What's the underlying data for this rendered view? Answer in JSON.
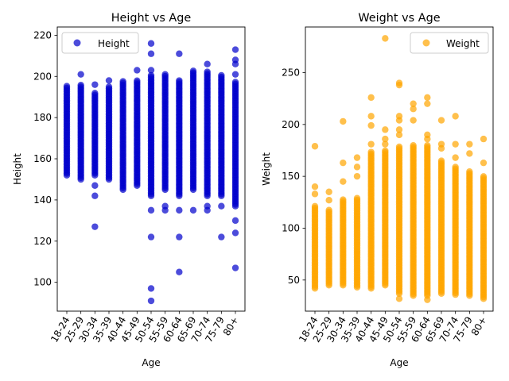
{
  "chart_data": [
    {
      "type": "scatter",
      "title": "Height vs Age",
      "xlabel": "Age",
      "ylabel": "Height",
      "color": "#0000cc",
      "categories": [
        "18-24",
        "25-29",
        "30-34",
        "35-39",
        "40-44",
        "45-49",
        "50-54",
        "55-59",
        "60-64",
        "65-69",
        "70-74",
        "75-79",
        "80+"
      ],
      "ylim": [
        86,
        224
      ],
      "yticks": [
        100,
        120,
        140,
        160,
        180,
        200,
        220
      ],
      "legend": {
        "label": "Height",
        "placement": "top-right"
      },
      "grid": false,
      "series": [
        {
          "name": "Height",
          "band_min": [
            152,
            150,
            152,
            150,
            145,
            147,
            142,
            145,
            142,
            145,
            142,
            142,
            137
          ],
          "band_max": [
            196,
            196,
            192,
            195,
            198,
            198,
            201,
            201,
            198,
            203,
            203,
            201,
            198
          ]
        }
      ],
      "outliers": [
        {
          "x": "25-29",
          "y": 201
        },
        {
          "x": "30-34",
          "y": 147
        },
        {
          "x": "30-34",
          "y": 142
        },
        {
          "x": "30-34",
          "y": 127
        },
        {
          "x": "30-34",
          "y": 196
        },
        {
          "x": "35-39",
          "y": 198
        },
        {
          "x": "45-49",
          "y": 203
        },
        {
          "x": "50-54",
          "y": 216
        },
        {
          "x": "50-54",
          "y": 211
        },
        {
          "x": "50-54",
          "y": 203
        },
        {
          "x": "50-54",
          "y": 135
        },
        {
          "x": "50-54",
          "y": 122
        },
        {
          "x": "50-54",
          "y": 97
        },
        {
          "x": "50-54",
          "y": 91
        },
        {
          "x": "55-59",
          "y": 137
        },
        {
          "x": "55-59",
          "y": 135
        },
        {
          "x": "60-64",
          "y": 211
        },
        {
          "x": "60-64",
          "y": 135
        },
        {
          "x": "60-64",
          "y": 122
        },
        {
          "x": "60-64",
          "y": 105
        },
        {
          "x": "65-69",
          "y": 135
        },
        {
          "x": "70-74",
          "y": 206
        },
        {
          "x": "70-74",
          "y": 137
        },
        {
          "x": "70-74",
          "y": 135
        },
        {
          "x": "75-79",
          "y": 122
        },
        {
          "x": "75-79",
          "y": 137
        },
        {
          "x": "80+",
          "y": 213
        },
        {
          "x": "80+",
          "y": 208
        },
        {
          "x": "80+",
          "y": 206
        },
        {
          "x": "80+",
          "y": 201
        },
        {
          "x": "80+",
          "y": 130
        },
        {
          "x": "80+",
          "y": 124
        },
        {
          "x": "80+",
          "y": 107
        }
      ]
    },
    {
      "type": "scatter",
      "title": "Weight vs Age",
      "xlabel": "Age",
      "ylabel": "Weight",
      "color": "#ffa500",
      "categories": [
        "18-24",
        "25-29",
        "30-34",
        "35-39",
        "40-44",
        "45-49",
        "50-54",
        "55-59",
        "60-64",
        "65-69",
        "70-74",
        "75-79",
        "80+"
      ],
      "ylim": [
        20,
        294
      ],
      "yticks": [
        50,
        100,
        150,
        200,
        250
      ],
      "legend": {
        "label": "Weight",
        "placement": "top-right"
      },
      "grid": false,
      "series": [
        {
          "name": "Weight",
          "band_min": [
            42,
            45,
            45,
            43,
            42,
            45,
            37,
            35,
            35,
            37,
            36,
            35,
            32
          ],
          "band_max": [
            122,
            118,
            128,
            130,
            175,
            175,
            180,
            180,
            180,
            165,
            160,
            155,
            150
          ]
        }
      ],
      "outliers": [
        {
          "x": "18-24",
          "y": 179
        },
        {
          "x": "18-24",
          "y": 140
        },
        {
          "x": "18-24",
          "y": 133
        },
        {
          "x": "25-29",
          "y": 135
        },
        {
          "x": "25-29",
          "y": 127
        },
        {
          "x": "30-34",
          "y": 203
        },
        {
          "x": "30-34",
          "y": 163
        },
        {
          "x": "30-34",
          "y": 145
        },
        {
          "x": "35-39",
          "y": 168
        },
        {
          "x": "35-39",
          "y": 159
        },
        {
          "x": "35-39",
          "y": 150
        },
        {
          "x": "40-44",
          "y": 226
        },
        {
          "x": "40-44",
          "y": 208
        },
        {
          "x": "40-44",
          "y": 199
        },
        {
          "x": "40-44",
          "y": 181
        },
        {
          "x": "45-49",
          "y": 283
        },
        {
          "x": "45-49",
          "y": 195
        },
        {
          "x": "45-49",
          "y": 186
        },
        {
          "x": "45-49",
          "y": 181
        },
        {
          "x": "50-54",
          "y": 240
        },
        {
          "x": "50-54",
          "y": 238
        },
        {
          "x": "50-54",
          "y": 208
        },
        {
          "x": "50-54",
          "y": 204
        },
        {
          "x": "50-54",
          "y": 195
        },
        {
          "x": "50-54",
          "y": 190
        },
        {
          "x": "50-54",
          "y": 32
        },
        {
          "x": "55-59",
          "y": 220
        },
        {
          "x": "55-59",
          "y": 215
        },
        {
          "x": "55-59",
          "y": 204
        },
        {
          "x": "60-64",
          "y": 226
        },
        {
          "x": "60-64",
          "y": 220
        },
        {
          "x": "60-64",
          "y": 190
        },
        {
          "x": "60-64",
          "y": 186
        },
        {
          "x": "60-64",
          "y": 31
        },
        {
          "x": "65-69",
          "y": 204
        },
        {
          "x": "65-69",
          "y": 181
        },
        {
          "x": "65-69",
          "y": 177
        },
        {
          "x": "70-74",
          "y": 208
        },
        {
          "x": "70-74",
          "y": 181
        },
        {
          "x": "70-74",
          "y": 168
        },
        {
          "x": "75-79",
          "y": 181
        },
        {
          "x": "75-79",
          "y": 172
        },
        {
          "x": "80+",
          "y": 186
        },
        {
          "x": "80+",
          "y": 163
        }
      ]
    }
  ]
}
